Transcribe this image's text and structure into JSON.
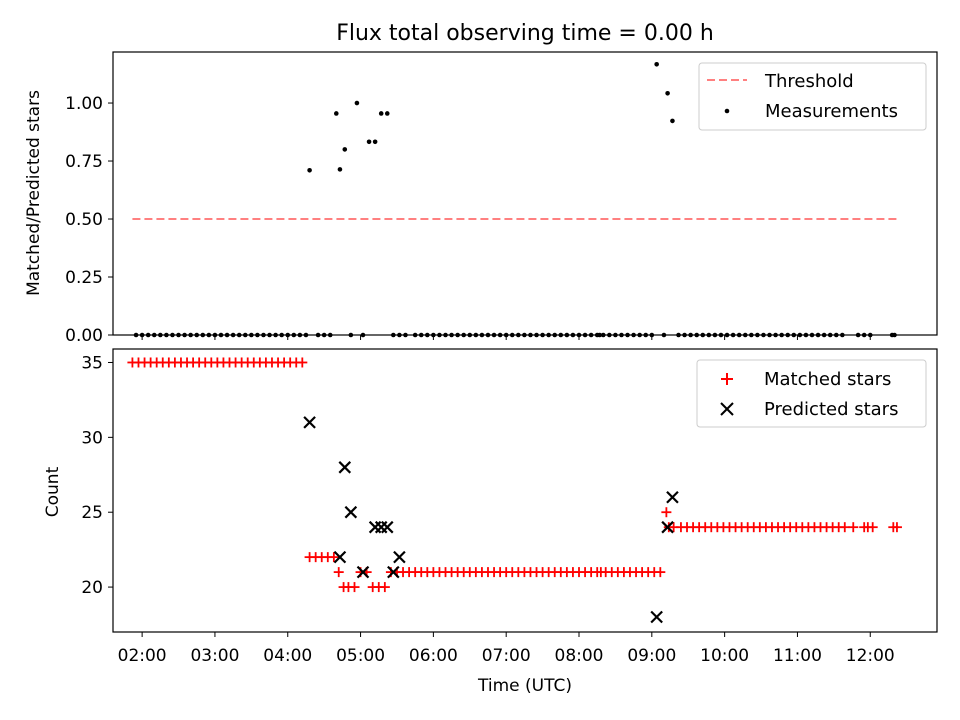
{
  "figure": {
    "title": "Flux total observing time = 0.00 h",
    "xlabel": "Time (UTC)"
  },
  "chart_data": [
    {
      "type": "scatter",
      "ylabel": "Matched/Predicted stars",
      "ylim": [
        0.0,
        1.22
      ],
      "xlim": [
        "01:36",
        "12:55"
      ],
      "y_ticks": [
        0.0,
        0.25,
        0.5,
        0.75,
        1.0
      ],
      "y_tick_labels": [
        "0.00",
        "0.25",
        "0.50",
        "0.75",
        "1.00"
      ],
      "x_ticks": [
        "02:00",
        "03:00",
        "04:00",
        "05:00",
        "06:00",
        "07:00",
        "08:00",
        "09:00",
        "10:00",
        "11:00",
        "12:00"
      ],
      "legend_position": "top-right",
      "series": [
        {
          "name": "Threshold",
          "style": "dashed-line",
          "color": "#ff8080",
          "x": [
            "01:52",
            "12:22"
          ],
          "y": [
            0.5,
            0.5
          ]
        },
        {
          "name": "Measurements",
          "style": "dot",
          "color": "#000000",
          "x": [
            "01:55",
            "02:00",
            "02:05",
            "02:10",
            "02:15",
            "02:20",
            "02:25",
            "02:30",
            "02:35",
            "02:40",
            "02:45",
            "02:50",
            "02:55",
            "03:00",
            "03:05",
            "03:10",
            "03:15",
            "03:20",
            "03:25",
            "03:30",
            "03:35",
            "03:40",
            "03:45",
            "03:50",
            "03:55",
            "04:00",
            "04:05",
            "04:10",
            "04:15",
            "04:18",
            "04:25",
            "04:30",
            "04:35",
            "04:40",
            "04:43",
            "04:47",
            "04:52",
            "04:57",
            "05:02",
            "05:07",
            "05:12",
            "05:17",
            "05:22",
            "05:27",
            "05:32",
            "05:37",
            "05:45",
            "05:50",
            "05:55",
            "06:00",
            "06:05",
            "06:10",
            "06:15",
            "06:20",
            "06:25",
            "06:30",
            "06:35",
            "06:40",
            "06:45",
            "06:50",
            "06:55",
            "07:00",
            "07:05",
            "07:10",
            "07:15",
            "07:20",
            "07:25",
            "07:30",
            "07:35",
            "07:40",
            "07:45",
            "07:50",
            "07:55",
            "08:00",
            "08:05",
            "08:10",
            "08:15",
            "08:17",
            "08:20",
            "08:25",
            "08:30",
            "08:35",
            "08:40",
            "08:45",
            "08:50",
            "08:55",
            "09:00",
            "09:04",
            "09:10",
            "09:13",
            "09:17",
            "09:22",
            "09:27",
            "09:32",
            "09:37",
            "09:42",
            "09:47",
            "09:52",
            "09:57",
            "10:02",
            "10:07",
            "10:12",
            "10:17",
            "10:22",
            "10:27",
            "10:32",
            "10:37",
            "10:42",
            "10:47",
            "10:52",
            "10:57",
            "11:02",
            "11:07",
            "11:12",
            "11:17",
            "11:22",
            "11:27",
            "11:32",
            "11:37",
            "11:50",
            "11:55",
            "12:00",
            "12:18",
            "12:20"
          ],
          "y": [
            0,
            0,
            0,
            0,
            0,
            0,
            0,
            0,
            0,
            0,
            0,
            0,
            0,
            0,
            0,
            0,
            0,
            0,
            0,
            0,
            0,
            0,
            0,
            0,
            0,
            0,
            0,
            0,
            0,
            0.71,
            0,
            0,
            0,
            0.955,
            0.714,
            0.8,
            0,
            1.0,
            0,
            0.833,
            0.833,
            0.955,
            0.955,
            0,
            0,
            0,
            0,
            0,
            0,
            0,
            0,
            0,
            0,
            0,
            0,
            0,
            0,
            0,
            0,
            0,
            0,
            0,
            0,
            0,
            0,
            0,
            0,
            0,
            0,
            0,
            0,
            0,
            0,
            0,
            0,
            0,
            0,
            0,
            0,
            0,
            0,
            0,
            0,
            0,
            0,
            0,
            0,
            1.167,
            0,
            1.042,
            0.923,
            0,
            0,
            0,
            0,
            0,
            0,
            0,
            0,
            0,
            0,
            0,
            0,
            0,
            0,
            0,
            0,
            0,
            0,
            0,
            0,
            0,
            0,
            0,
            0,
            0,
            0,
            0,
            0,
            0,
            0,
            0,
            0,
            0
          ]
        }
      ]
    },
    {
      "type": "scatter",
      "ylabel": "Count",
      "ylim": [
        17.0,
        35.9
      ],
      "xlim": [
        "01:36",
        "12:55"
      ],
      "y_ticks": [
        20,
        25,
        30,
        35
      ],
      "y_tick_labels": [
        "20",
        "25",
        "30",
        "35"
      ],
      "x_ticks": [
        "02:00",
        "03:00",
        "04:00",
        "05:00",
        "06:00",
        "07:00",
        "08:00",
        "09:00",
        "10:00",
        "11:00",
        "12:00"
      ],
      "x_tick_labels": [
        "02:00",
        "03:00",
        "04:00",
        "05:00",
        "06:00",
        "07:00",
        "08:00",
        "09:00",
        "10:00",
        "11:00",
        "12:00"
      ],
      "legend_position": "top-right",
      "series": [
        {
          "name": "Matched stars",
          "style": "plus",
          "color": "#ff0000",
          "x": [
            "01:52",
            "01:57",
            "02:02",
            "02:07",
            "02:12",
            "02:17",
            "02:22",
            "02:27",
            "02:32",
            "02:37",
            "02:42",
            "02:47",
            "02:52",
            "02:57",
            "03:02",
            "03:07",
            "03:12",
            "03:17",
            "03:22",
            "03:27",
            "03:32",
            "03:37",
            "03:42",
            "03:47",
            "03:52",
            "03:57",
            "04:02",
            "04:07",
            "04:12",
            "04:18",
            "04:23",
            "04:28",
            "04:33",
            "04:38",
            "04:42",
            "04:46",
            "04:50",
            "04:55",
            "05:00",
            "05:05",
            "05:10",
            "05:15",
            "05:20",
            "05:25",
            "05:30",
            "05:35",
            "05:40",
            "05:45",
            "05:50",
            "05:55",
            "06:00",
            "06:05",
            "06:10",
            "06:15",
            "06:20",
            "06:25",
            "06:30",
            "06:35",
            "06:40",
            "06:45",
            "06:50",
            "06:55",
            "07:00",
            "07:05",
            "07:10",
            "07:15",
            "07:20",
            "07:25",
            "07:30",
            "07:35",
            "07:40",
            "07:45",
            "07:50",
            "07:55",
            "08:00",
            "08:05",
            "08:10",
            "08:15",
            "08:18",
            "08:22",
            "08:27",
            "08:32",
            "08:37",
            "08:42",
            "08:47",
            "08:52",
            "08:57",
            "09:02",
            "09:07",
            "09:12",
            "09:14",
            "09:18",
            "09:24",
            "09:29",
            "09:34",
            "09:39",
            "09:44",
            "09:49",
            "09:54",
            "09:59",
            "10:04",
            "10:09",
            "10:14",
            "10:19",
            "10:24",
            "10:29",
            "10:34",
            "10:39",
            "10:44",
            "10:49",
            "10:54",
            "10:59",
            "11:04",
            "11:09",
            "11:14",
            "11:19",
            "11:24",
            "11:29",
            "11:34",
            "11:39",
            "11:46",
            "11:55",
            "11:58",
            "12:02",
            "12:19",
            "12:22"
          ],
          "y": [
            35,
            35,
            35,
            35,
            35,
            35,
            35,
            35,
            35,
            35,
            35,
            35,
            35,
            35,
            35,
            35,
            35,
            35,
            35,
            35,
            35,
            35,
            35,
            35,
            35,
            35,
            35,
            35,
            35,
            22,
            22,
            22,
            22,
            22,
            21,
            20,
            20,
            20,
            21,
            21,
            20,
            20,
            20,
            21,
            21,
            21,
            21,
            21,
            21,
            21,
            21,
            21,
            21,
            21,
            21,
            21,
            21,
            21,
            21,
            21,
            21,
            21,
            21,
            21,
            21,
            21,
            21,
            21,
            21,
            21,
            21,
            21,
            21,
            21,
            21,
            21,
            21,
            21,
            21,
            21,
            21,
            21,
            21,
            21,
            21,
            21,
            21,
            21,
            21,
            25,
            24,
            24,
            24,
            24,
            24,
            24,
            24,
            24,
            24,
            24,
            24,
            24,
            24,
            24,
            24,
            24,
            24,
            24,
            24,
            24,
            24,
            24,
            24,
            24,
            24,
            24,
            24,
            24,
            24,
            24,
            24,
            24,
            24,
            24,
            24,
            24
          ]
        },
        {
          "name": "Predicted stars",
          "style": "x",
          "color": "#000000",
          "x": [
            "04:18",
            "04:43",
            "04:47",
            "04:52",
            "05:02",
            "05:12",
            "05:17",
            "05:22",
            "05:27",
            "05:32",
            "09:04",
            "09:13",
            "09:17"
          ],
          "y": [
            31,
            22,
            28,
            25,
            21,
            24,
            24,
            24,
            21,
            22,
            18,
            24,
            26
          ]
        }
      ]
    }
  ]
}
